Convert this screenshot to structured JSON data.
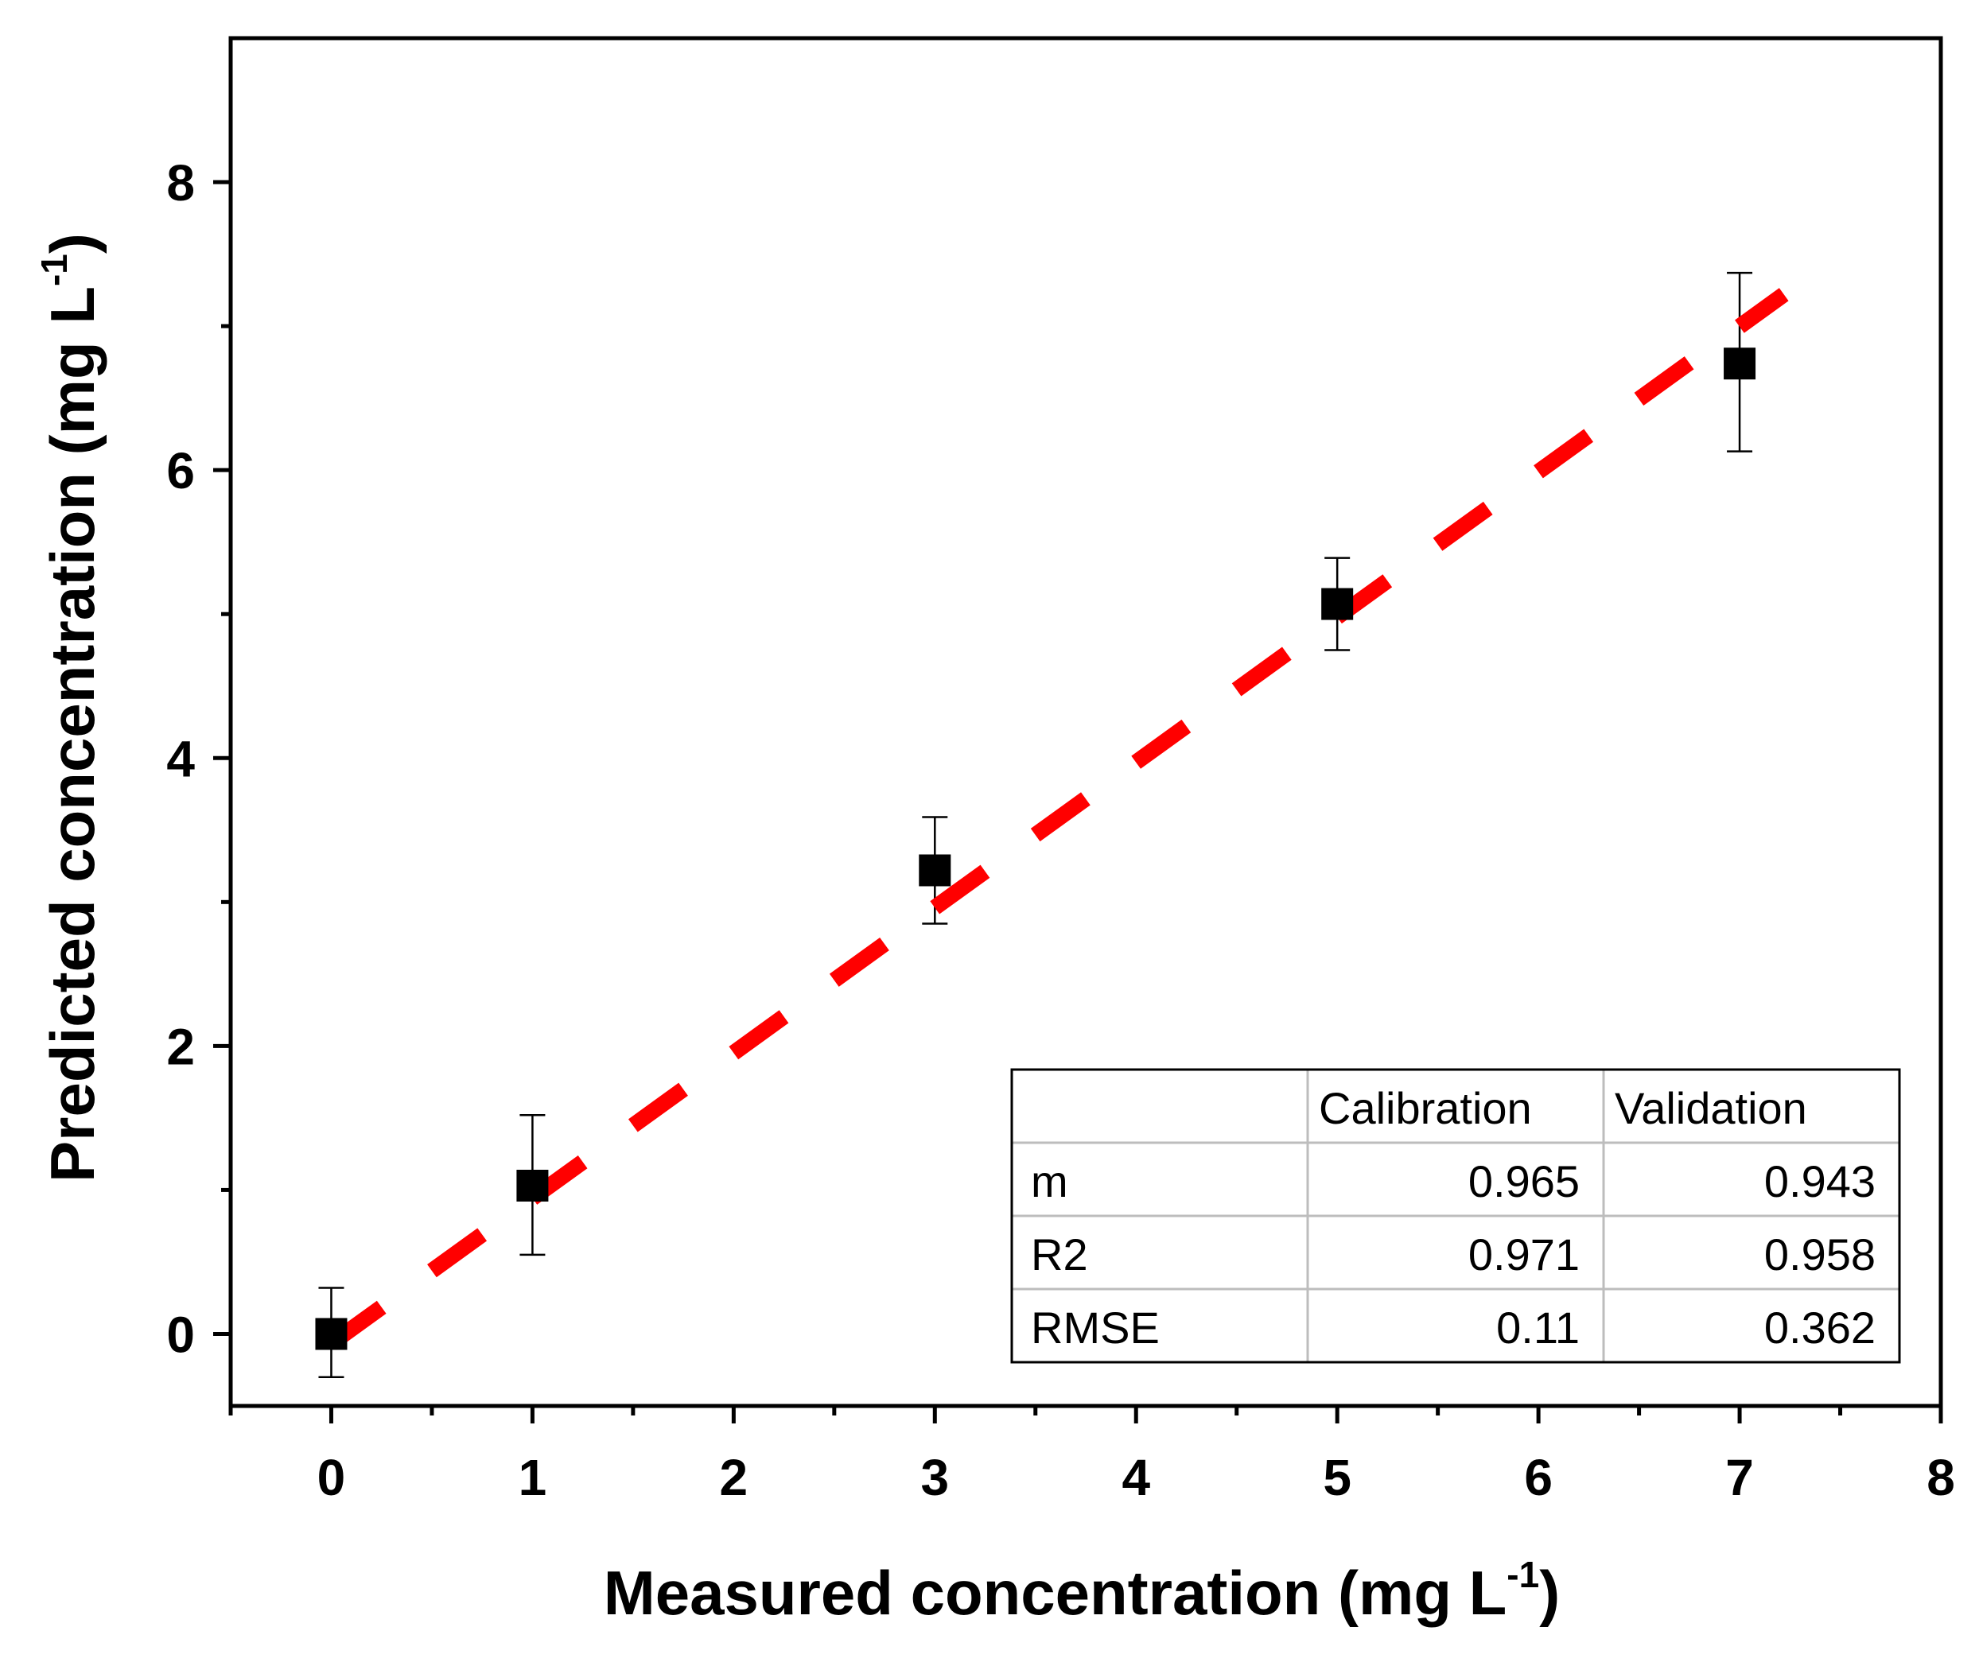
{
  "chart_data": {
    "type": "scatter",
    "title": "",
    "xlabel": "Measured concentration (mg L-1)",
    "ylabel": "Predicted concentration (mg L-1)",
    "xlabel_parts": {
      "main": "Measured concentration (mg L",
      "sup": "-1",
      "close": ")"
    },
    "ylabel_parts": {
      "main": "Predicted concentration (mg L",
      "sup": "-1",
      "close": ")"
    },
    "xlim": [
      -0.5,
      8
    ],
    "ylim": [
      -0.5,
      9
    ],
    "x_major_ticks": [
      0,
      1,
      2,
      3,
      4,
      5,
      6,
      7,
      8
    ],
    "x_minor_ticks": [
      -0.5,
      0.5,
      1.5,
      2.5,
      3.5,
      4.5,
      5.5,
      6.5,
      7.5
    ],
    "y_major_ticks": [
      0,
      2,
      4,
      6,
      8
    ],
    "y_minor_ticks": [
      1,
      3,
      5,
      7
    ],
    "grid": false,
    "series": [
      {
        "name": "predicted",
        "marker": "square",
        "color": "#000000",
        "x": [
          0,
          1,
          3,
          5,
          7
        ],
        "y": [
          0.0,
          1.03,
          3.22,
          5.07,
          6.74
        ],
        "err_low": [
          0.3,
          0.48,
          0.37,
          0.32,
          0.61
        ],
        "err_high": [
          0.32,
          0.49,
          0.37,
          0.32,
          0.63
        ]
      }
    ],
    "fit_line": {
      "name": "regression line",
      "style": "dashed",
      "color": "#ff0000",
      "slope": 1.0,
      "intercept": 0.0,
      "x_range": [
        0,
        7.22
      ]
    },
    "stats_table": {
      "headers": [
        "",
        "Calibration",
        "Validation"
      ],
      "rows": [
        [
          "m",
          "0.965",
          "0.943"
        ],
        [
          "R2",
          "0.971",
          "0.958"
        ],
        [
          "RMSE",
          "0.11",
          "0.362"
        ]
      ],
      "placement": "bottom-right"
    }
  }
}
